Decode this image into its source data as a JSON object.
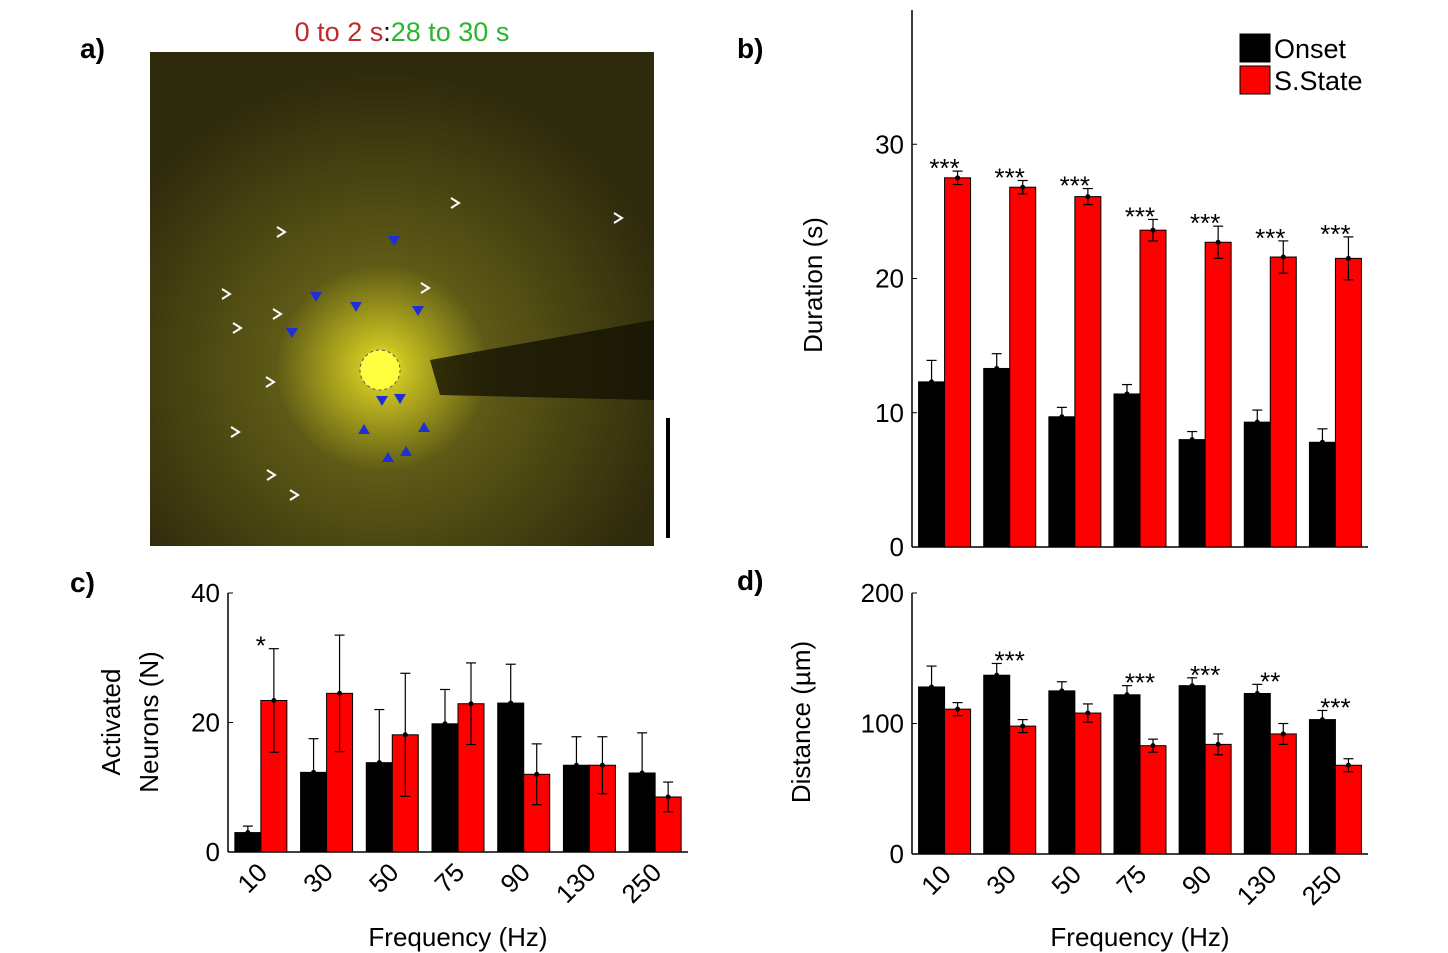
{
  "image_panel": {
    "panel_label": "a)",
    "title_parts": [
      "0 to 2 s",
      ":",
      "28 to 30 s"
    ],
    "title_colors": [
      "#c1272d",
      "#000000",
      "#2ab52a"
    ]
  },
  "chart_data": [
    {
      "type": "bar",
      "panel_label": "b)",
      "ylabel": [
        "Duration (s)"
      ],
      "ylim": [
        0,
        40
      ],
      "yticks": [
        0,
        10,
        20,
        30
      ],
      "legend": "top-right",
      "series": [
        {
          "name": "Onset",
          "color": "#000000",
          "values": [
            12.3,
            13.3,
            9.7,
            11.4,
            8.0,
            9.3,
            7.8
          ],
          "errors": [
            1.6,
            1.1,
            0.7,
            0.7,
            0.6,
            0.9,
            1.0
          ]
        },
        {
          "name": "S.State",
          "color": "#ff0000",
          "values": [
            27.5,
            26.8,
            26.1,
            23.6,
            22.7,
            21.6,
            21.5
          ],
          "errors": [
            0.5,
            0.5,
            0.6,
            0.8,
            1.2,
            1.2,
            1.6
          ]
        }
      ],
      "annotations": [
        "***",
        "***",
        "***",
        "***",
        "***",
        "***",
        "***"
      ]
    },
    {
      "type": "bar",
      "panel_label": "c)",
      "ylabel": [
        "Activated",
        "Neurons (N)"
      ],
      "xlabel": "Frequency (Hz)",
      "categories": [
        "10",
        "30",
        "50",
        "75",
        "90",
        "130",
        "250"
      ],
      "ylim": [
        0,
        40
      ],
      "yticks": [
        0,
        20,
        40
      ],
      "series": [
        {
          "color": "#000000",
          "values": [
            3,
            12.3,
            13.8,
            19.8,
            23,
            13.4,
            12.2
          ],
          "errors": [
            1,
            5.2,
            8.2,
            5.3,
            6,
            4.4,
            6.2
          ]
        },
        {
          "color": "#ff0000",
          "values": [
            23.4,
            24.5,
            18.1,
            22.9,
            12,
            13.4,
            8.5
          ],
          "errors": [
            8,
            9,
            9.5,
            6.3,
            4.7,
            4.4,
            2.3
          ]
        }
      ],
      "annotations": [
        "*",
        null,
        null,
        null,
        null,
        null,
        null
      ]
    },
    {
      "type": "bar",
      "panel_label": "d)",
      "ylabel": [
        "Distance (µm)"
      ],
      "xlabel": "Frequency (Hz)",
      "categories": [
        "10",
        "30",
        "50",
        "75",
        "90",
        "130",
        "250"
      ],
      "ylim": [
        0,
        200
      ],
      "yticks": [
        0,
        100,
        200
      ],
      "series": [
        {
          "color": "#000000",
          "values": [
            128,
            137,
            125,
            122,
            129,
            123,
            103
          ],
          "errors": [
            16,
            9,
            7,
            7,
            6,
            7,
            7
          ]
        },
        {
          "color": "#ff0000",
          "values": [
            111,
            98,
            108,
            83,
            84,
            92,
            68
          ],
          "errors": [
            5,
            5,
            7,
            5,
            8,
            8,
            5
          ]
        }
      ],
      "annotations": [
        null,
        "***",
        null,
        "***",
        "***",
        "**",
        "***"
      ]
    }
  ]
}
